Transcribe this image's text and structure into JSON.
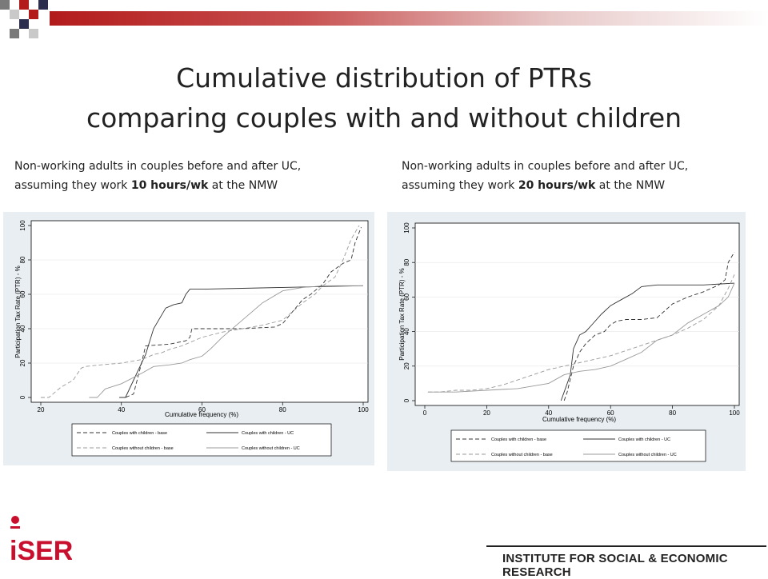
{
  "header": {
    "title_line1": "Cumulative distribution of PTRs",
    "title_line2": "comparing couples with and without children"
  },
  "subtitles": {
    "left_line1": "Non-working adults in couples before and after UC,",
    "left_pre": "assuming they work ",
    "left_bold": "10 hours/wk",
    "left_post": " at the NMW",
    "right_line1": "Non-working adults in couples before and after UC,",
    "right_pre": "assuming they work ",
    "right_bold": "20 hours/wk",
    "right_post": " at the NMW"
  },
  "footer": {
    "logo_text": "iSER",
    "institute": "INSTITUTE FOR SOCIAL & ECONOMIC RESEARCH"
  },
  "colors": {
    "accent": "#b31b1b",
    "panel_bg": "#e8eef2",
    "logo_red": "#c8102e"
  },
  "chart_data": [
    {
      "type": "line",
      "xlabel": "Cumulative frequency (%)",
      "ylabel": "Participation Tax Rate (PTR) - %",
      "xlim": [
        20,
        100
      ],
      "ylim": [
        0,
        100
      ],
      "xticks": [
        20,
        40,
        60,
        80,
        100
      ],
      "yticks": [
        0,
        20,
        40,
        60,
        80,
        100
      ],
      "legend_position": "bottom",
      "series": [
        {
          "name": "Couples with children - base",
          "style": "dashed-dark",
          "x": [
            39.5,
            41,
            43,
            45,
            46,
            52,
            56,
            57,
            57.5,
            58,
            59,
            62,
            70,
            78,
            80,
            85,
            87,
            90,
            92,
            95,
            97,
            98,
            99.5
          ],
          "y": [
            0,
            0,
            2,
            20,
            30,
            31,
            33,
            35,
            40,
            40,
            40,
            40,
            40,
            41,
            43,
            57,
            60,
            66,
            73,
            78,
            80,
            90,
            99
          ]
        },
        {
          "name": "Couples with children - UC",
          "style": "solid-dark",
          "x": [
            39.5,
            41,
            43,
            46,
            48,
            51,
            53,
            55,
            56,
            57,
            57.5,
            60,
            70,
            80,
            90,
            100
          ],
          "y": [
            0,
            0,
            10,
            25,
            40,
            52,
            54,
            55,
            60,
            63,
            63,
            63,
            63.5,
            64,
            64.5,
            65
          ]
        },
        {
          "name": "Couples without children - base",
          "style": "dashed-light",
          "x": [
            20,
            22,
            25,
            28,
            30,
            31,
            35,
            40,
            45,
            48,
            50,
            52,
            55,
            57,
            60,
            65,
            70,
            75,
            80,
            85,
            88,
            90,
            93,
            95,
            97,
            99
          ],
          "y": [
            0,
            0,
            6,
            10,
            17,
            18,
            19,
            20,
            22,
            25,
            26,
            28,
            30,
            32,
            35,
            38,
            40,
            42,
            45,
            55,
            60,
            65,
            70,
            80,
            92,
            100
          ]
        },
        {
          "name": "Couples without children - UC",
          "style": "solid-light",
          "x": [
            32,
            34,
            36,
            40,
            45,
            48,
            52,
            55,
            57,
            60,
            62,
            65,
            70,
            75,
            80,
            85,
            88,
            90,
            100
          ],
          "y": [
            0,
            0,
            5,
            8,
            14,
            18,
            19,
            20,
            22,
            24,
            28,
            35,
            45,
            55,
            62,
            64,
            64.5,
            65,
            65
          ]
        }
      ]
    },
    {
      "type": "line",
      "xlabel": "Cumulative frequency (%)",
      "ylabel": "Participation Tax Rate (PTR) - %",
      "xlim": [
        0,
        100
      ],
      "ylim": [
        0,
        100
      ],
      "xticks": [
        0,
        20,
        40,
        60,
        80,
        100
      ],
      "yticks": [
        0,
        20,
        40,
        60,
        80,
        100
      ],
      "legend_position": "bottom",
      "series": [
        {
          "name": "Couples with children - base",
          "style": "dashed-dark",
          "x": [
            45,
            46,
            48,
            50,
            52,
            55,
            58,
            60,
            62,
            65,
            70,
            75,
            80,
            85,
            90,
            95,
            97,
            98,
            100
          ],
          "y": [
            0,
            5,
            20,
            28,
            33,
            38,
            40,
            44,
            46,
            47,
            47,
            48,
            56,
            60,
            63,
            67,
            70,
            80,
            86
          ]
        },
        {
          "name": "Couples with children - UC",
          "style": "solid-dark",
          "x": [
            44,
            45,
            47,
            48,
            50,
            52,
            54,
            57,
            60,
            63,
            67,
            70,
            75,
            80,
            90,
            100
          ],
          "y": [
            0,
            5,
            15,
            30,
            38,
            40,
            44,
            50,
            55,
            58,
            62,
            66,
            67,
            67,
            67,
            68
          ]
        },
        {
          "name": "Couples without children - base",
          "style": "dashed-light",
          "x": [
            1,
            5,
            10,
            15,
            20,
            25,
            30,
            35,
            40,
            45,
            50,
            55,
            60,
            65,
            70,
            75,
            80,
            85,
            90,
            95,
            98,
            100
          ],
          "y": [
            5,
            5,
            6,
            6,
            7,
            9,
            12,
            15,
            18,
            20,
            22,
            24,
            26,
            29,
            32,
            35,
            38,
            42,
            47,
            55,
            65,
            73
          ]
        },
        {
          "name": "Couples without children - UC",
          "style": "solid-light",
          "x": [
            1,
            10,
            20,
            30,
            40,
            45,
            50,
            55,
            60,
            65,
            70,
            75,
            80,
            85,
            90,
            95,
            98,
            100
          ],
          "y": [
            5,
            5,
            6,
            7,
            10,
            15,
            17,
            18,
            20,
            24,
            28,
            35,
            38,
            45,
            50,
            55,
            60,
            68
          ]
        }
      ]
    }
  ]
}
